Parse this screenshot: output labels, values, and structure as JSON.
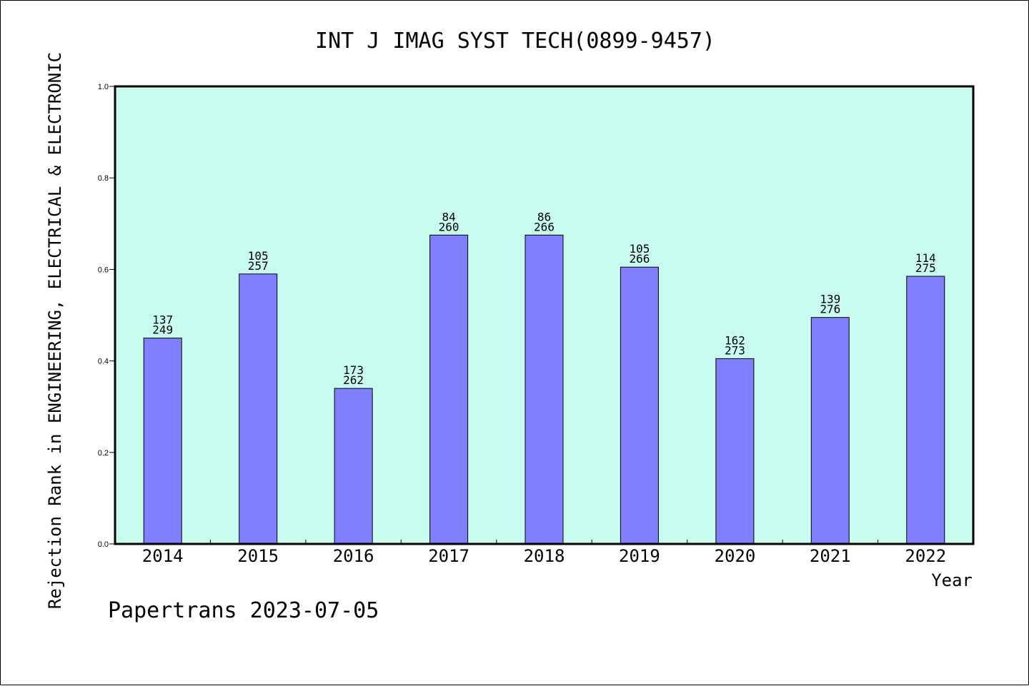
{
  "chart_data": {
    "type": "bar",
    "title": "INT J IMAG SYST TECH(0899-9457)",
    "xlabel": "Year",
    "ylabel": "Rejection Rank in ENGINEERING, ELECTRICAL & ELECTRONIC",
    "ylim": [
      0,
      1.0
    ],
    "yticks": [
      "0.0",
      "0.2",
      "0.4",
      "0.6",
      "0.8",
      "1.0"
    ],
    "categories": [
      "2014",
      "2015",
      "2016",
      "2017",
      "2018",
      "2019",
      "2020",
      "2021",
      "2022"
    ],
    "values": [
      0.45,
      0.59,
      0.34,
      0.675,
      0.675,
      0.605,
      0.405,
      0.495,
      0.585
    ],
    "ranks": [
      "137",
      "105",
      "173",
      "84",
      "86",
      "105",
      "162",
      "139",
      "114"
    ],
    "totals": [
      "249",
      "257",
      "262",
      "260",
      "266",
      "266",
      "273",
      "276",
      "275"
    ],
    "grid": false,
    "colors": {
      "plot_background": "#c8fcef",
      "bar_fill": "#8080ff",
      "bar_stroke": "#000000"
    }
  },
  "footer": "Papertrans 2023-07-05"
}
